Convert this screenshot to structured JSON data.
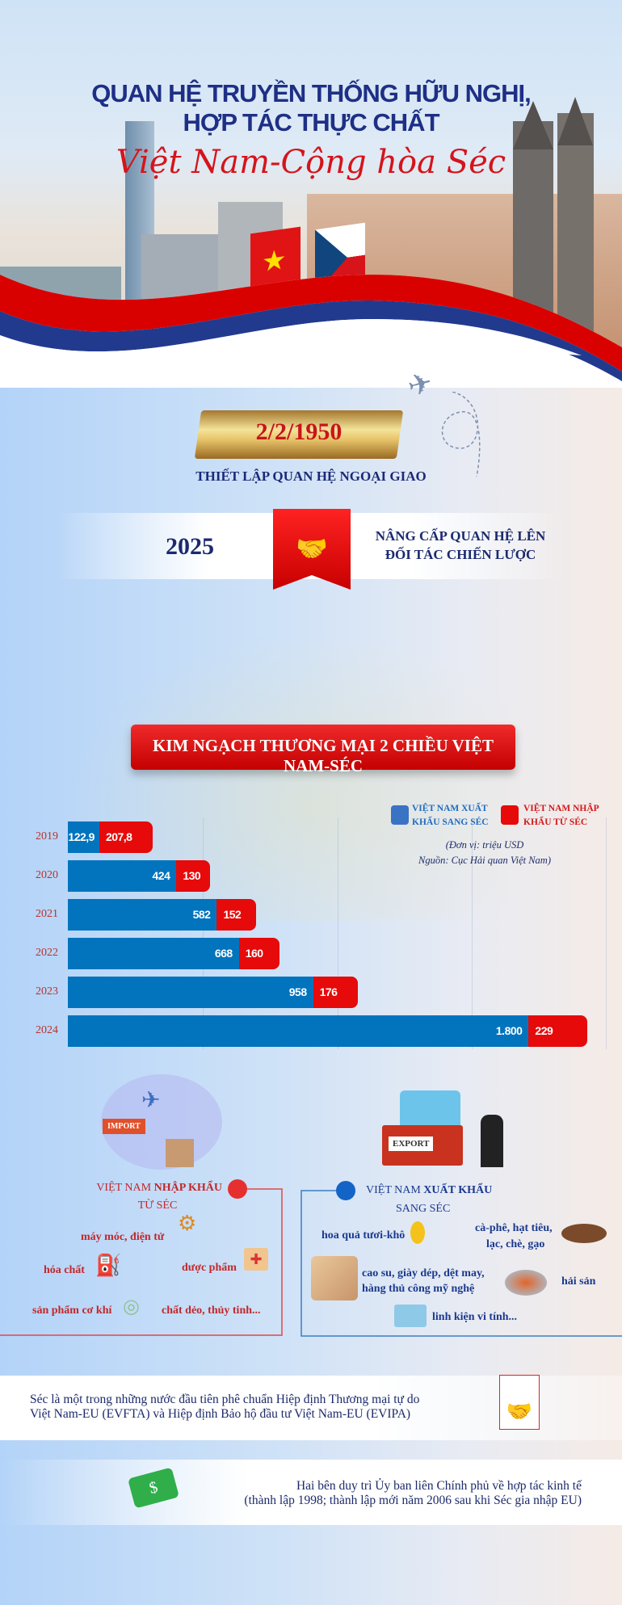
{
  "header": {
    "title_line1": "QUAN HỆ TRUYỀN THỐNG HỮU NGHỊ,",
    "title_line2": "HỢP TÁC THỰC CHẤT",
    "title_script": "Việt Nam-Cộng hòa Séc"
  },
  "milestones": {
    "date": "2/2/1950",
    "date_caption": "THIẾT LẬP QUAN HỆ NGOẠI GIAO",
    "year": "2025",
    "year_caption_line1": "NÂNG CẤP QUAN HỆ LÊN",
    "year_caption_line2": "ĐỐI TÁC CHIẾN LƯỢC"
  },
  "trade_banner": "KIM NGẠCH THƯƠNG MẠI 2 CHIỀU VIỆT NAM-SÉC",
  "chart_data": {
    "type": "bar",
    "orientation": "horizontal",
    "stacked": true,
    "categories": [
      "2019",
      "2020",
      "2021",
      "2022",
      "2023",
      "2024"
    ],
    "series": [
      {
        "name": "VIỆT NAM XUẤT KHẨU SANG SÉC",
        "color": "#0274bd",
        "values": [
          122.9,
          424,
          582,
          668,
          958,
          1800
        ],
        "labels": [
          "122,9",
          "424",
          "582",
          "668",
          "958",
          "1.800"
        ]
      },
      {
        "name": "VIỆT NAM NHẬP KHẨU TỪ SÉC",
        "color": "#e60a0a",
        "values": [
          207.8,
          130,
          152,
          160,
          176,
          229
        ],
        "labels": [
          "207,8",
          "130",
          "152",
          "160",
          "176",
          "229"
        ]
      }
    ],
    "legend": [
      {
        "line1": "VIỆT NAM XUẤT",
        "line2": "KHẨU SANG SÉC"
      },
      {
        "line1": "VIỆT NAM NHẬP",
        "line2": "KHẨU TỪ SÉC"
      }
    ],
    "legend_position": "top-right",
    "unit_note": "(Đơn vị: triệu USD",
    "source_note": "Nguồn: Cục Hải quan Việt Nam)",
    "xlim": [
      0,
      2100
    ],
    "grid": true
  },
  "imports": {
    "title_prefix": "VIỆT NAM",
    "title_bold": "NHẬP KHẨU",
    "title_line2": "TỪ SÉC",
    "illustration_label": "IMPORT",
    "items": [
      "máy móc, điện tử",
      "hóa chất",
      "dược phẩm",
      "sản phẩm cơ khí",
      "chất dẻo, thủy tinh..."
    ]
  },
  "exports": {
    "title_prefix": "VIỆT NAM",
    "title_bold": "XUẤT KHẨU",
    "title_line2": "SANG SÉC",
    "illustration_label": "EXPORT",
    "items": [
      "hoa quả tươi-khô",
      "cà-phê, hạt tiêu,",
      "lạc, chè, gạo",
      "cao su, giày dép, dệt may,",
      "hàng thủ công mỹ nghệ",
      "hải sản",
      "linh kiện vi tính..."
    ]
  },
  "facts": {
    "fact1_line1": "Séc là một trong những nước đầu tiên phê chuẩn Hiệp định Thương mại tự do",
    "fact1_line2": "Việt Nam-EU (EVFTA) và Hiệp định Bảo hộ đầu tư Việt Nam-EU (EVIPA)",
    "fact2_line1": "Hai bên duy trì Ủy ban liên Chính phủ về hợp tác kinh tế",
    "fact2_line2": "(thành lập 1998; thành lập mới năm 2006 sau khi Séc gia nhập EU)"
  },
  "colors": {
    "navy": "#1e2f86",
    "red": "#e60a0a",
    "blue": "#0274bd"
  }
}
